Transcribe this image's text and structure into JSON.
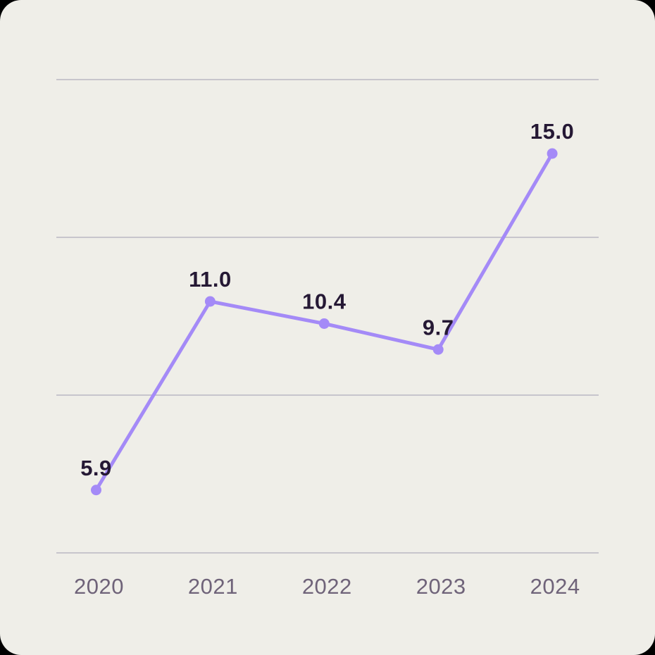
{
  "chart_data": {
    "type": "line",
    "categories": [
      "2020",
      "2021",
      "2022",
      "2023",
      "2024"
    ],
    "series": [
      {
        "name": "value",
        "values": [
          5.9,
          11.0,
          10.4,
          9.7,
          15.0
        ]
      }
    ],
    "point_labels": [
      "5.9",
      "11.0",
      "10.4",
      "9.7",
      "15.0"
    ],
    "title": "",
    "xlabel": "",
    "ylabel": "",
    "ylim": [
      4.2,
      17.0
    ],
    "gridlines": {
      "orientation": "horizontal",
      "count": 4,
      "visible": true
    },
    "legend": "none",
    "y_axis_tick_labels": "none"
  },
  "colors": {
    "page_background": "#000000",
    "card_background": "#efeee8",
    "gridline": "#c7c5cc",
    "line": "#a48af7",
    "point": "#a48af7",
    "value_label": "#251834",
    "axis_label": "#6f6379"
  }
}
